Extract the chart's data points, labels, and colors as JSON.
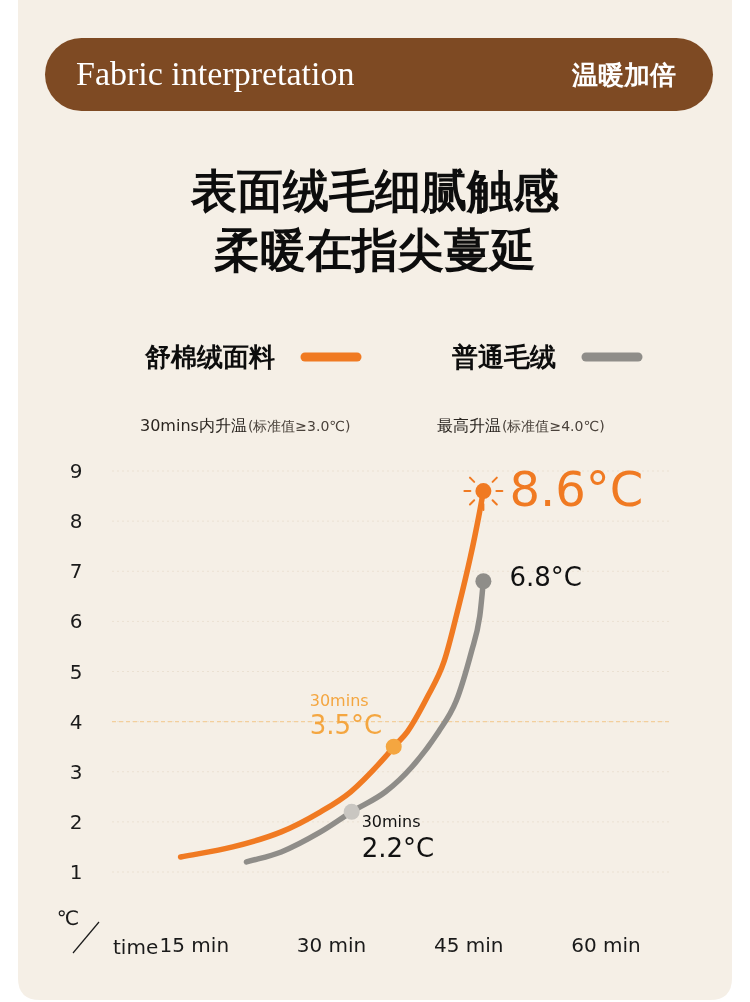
{
  "chart_data": {
    "type": "line",
    "title": "表面绒毛细腻触感",
    "subtitle": "柔暖在指尖蔓延",
    "xlabel": "time",
    "ylabel": "℃",
    "annotations": [
      "Fabric interpretation",
      "温暖加倍",
      "30mins内升温",
      "(标准值≥3.0℃)",
      "最高升温",
      "(标准值≥4.0℃)",
      {
        "text": "30mins",
        "x": 36.8,
        "y": 3.5
      },
      {
        "text": "30mins",
        "x": 32.2,
        "y": 2.2
      }
    ],
    "xlim": [
      6,
      67
    ],
    "xticks": [
      {
        "value": 15,
        "label": "15 min"
      },
      {
        "value": 30,
        "label": "30 min"
      },
      {
        "value": 45,
        "label": "45 min"
      },
      {
        "value": 60,
        "label": "60 min"
      }
    ],
    "ylim": [
      1,
      9
    ],
    "yticks": [
      1,
      2,
      3,
      4,
      5,
      6,
      7,
      8,
      9
    ],
    "grid": "y",
    "legend": "top",
    "ref_lines": [
      {
        "axis": "y",
        "value": 4,
        "color": "#f3cf9c",
        "line_style": "dashed"
      }
    ],
    "series": [
      {
        "name": "舒棉绒面料",
        "color": "#f07a22",
        "x": [
          13.5,
          19.2,
          24.5,
          28.8,
          32.1,
          35.9,
          36.8,
          38.3,
          40.5,
          42.3,
          43.9,
          45.2,
          46.1,
          46.6
        ],
        "values": [
          1.3,
          1.5,
          1.8,
          2.2,
          2.6,
          3.3,
          3.5,
          3.8,
          4.5,
          5.2,
          6.3,
          7.3,
          8.1,
          8.6
        ]
      },
      {
        "name": "普通毛绒",
        "color": "#8f8d89",
        "x": [
          20.7,
          24.5,
          28.8,
          32.2,
          35.9,
          38.8,
          41.7,
          43.6,
          45.3,
          46.2,
          46.6
        ],
        "values": [
          1.2,
          1.4,
          1.8,
          2.2,
          2.6,
          3.1,
          3.8,
          4.4,
          5.4,
          6.1,
          6.8
        ]
      },
      {
        "type": "scatter",
        "marker": "circle",
        "colors": [
          "#f4a640",
          "#f07a22"
        ],
        "x": [
          36.8,
          46.6
        ],
        "values": [
          3.5,
          8.6
        ],
        "value_labels": [
          "3.5°C",
          "8.6°C"
        ]
      },
      {
        "type": "scatter",
        "marker": "circle",
        "colors": [
          "#c9c6c1",
          "#8f8d89"
        ],
        "x": [
          32.2,
          46.6
        ],
        "values": [
          2.2,
          6.8
        ],
        "value_labels": [
          "2.2°C",
          "6.8°C"
        ]
      }
    ]
  }
}
